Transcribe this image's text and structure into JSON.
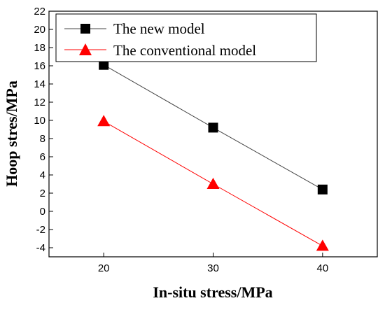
{
  "chart_data": {
    "type": "line",
    "title": "",
    "xlabel": "In-situ stress/MPa",
    "ylabel": "Hoop stres/MPa",
    "x": [
      20,
      30,
      40
    ],
    "xticks": [
      20,
      30,
      40
    ],
    "xlim": [
      15,
      45
    ],
    "ylim": [
      -5,
      22
    ],
    "yticks": [
      -4,
      -2,
      0,
      2,
      4,
      6,
      8,
      10,
      12,
      14,
      16,
      18,
      20,
      22
    ],
    "grid": false,
    "legend_position": "top-left",
    "series": [
      {
        "name": "The new model",
        "values": [
          16.1,
          9.2,
          2.4
        ],
        "color": "#000000",
        "line_color": "#444444",
        "marker": "square"
      },
      {
        "name": "The conventional model",
        "values": [
          9.9,
          3.0,
          -3.8
        ],
        "color": "#ff0000",
        "line_color": "#ff0000",
        "marker": "triangle"
      }
    ]
  }
}
